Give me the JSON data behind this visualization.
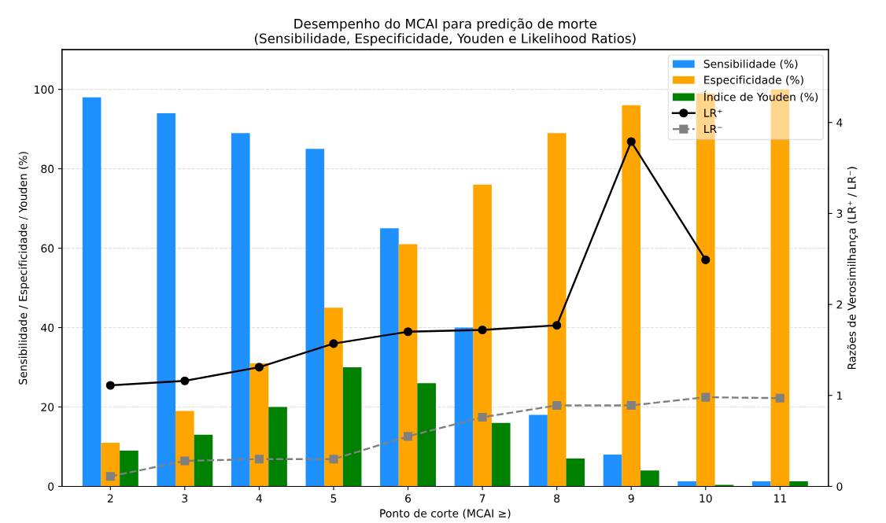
{
  "chart_data": {
    "type": "bar",
    "title": "Desempenho do MCAI para predição de morte\n(Sensibilidade, Especificidade, Youden e Likelihood Ratios)",
    "xlabel": "Ponto de corte (MCAI ≥)",
    "ylabel": "Sensibilidade / Especificidade / Youden (%)",
    "y2label": "Razões de Verosimilhança (LR⁺ / LR⁻)",
    "categories": [
      "2",
      "3",
      "4",
      "5",
      "6",
      "7",
      "8",
      "9",
      "10",
      "11"
    ],
    "series": [
      {
        "name": "Sensibilidade (%)",
        "color": "#1e90ff",
        "values": [
          98,
          94,
          89,
          85,
          65,
          40,
          18,
          8,
          1.3,
          1.3
        ]
      },
      {
        "name": "Especificidade (%)",
        "color": "#ffa500",
        "values": [
          11,
          19,
          31,
          45,
          61,
          76,
          89,
          96,
          99,
          100
        ]
      },
      {
        "name": "Índice de Youden (%)",
        "color": "#008000",
        "values": [
          9,
          13,
          20,
          30,
          26,
          16,
          7,
          4,
          0.4,
          1.3
        ]
      },
      {
        "name": "LR⁺",
        "type": "line",
        "axis": "y2",
        "color": "#000000",
        "marker": "circle",
        "line_style": "solid",
        "values": [
          1.11,
          1.16,
          1.31,
          1.57,
          1.7,
          1.72,
          1.77,
          3.79,
          2.49,
          null
        ]
      },
      {
        "name": "LR⁻",
        "type": "line",
        "axis": "y2",
        "color": "#808080",
        "marker": "square",
        "line_style": "dashed",
        "values": [
          0.11,
          0.28,
          0.3,
          0.3,
          0.55,
          0.76,
          0.89,
          0.89,
          0.98,
          0.97
        ]
      }
    ],
    "ylim": [
      0,
      110
    ],
    "yticks": [
      0,
      20,
      40,
      60,
      80,
      100
    ],
    "y2lim": [
      0,
      4.8
    ],
    "y2ticks": [
      0,
      1,
      2,
      3,
      4
    ],
    "grid": "y",
    "legend": "top right"
  }
}
